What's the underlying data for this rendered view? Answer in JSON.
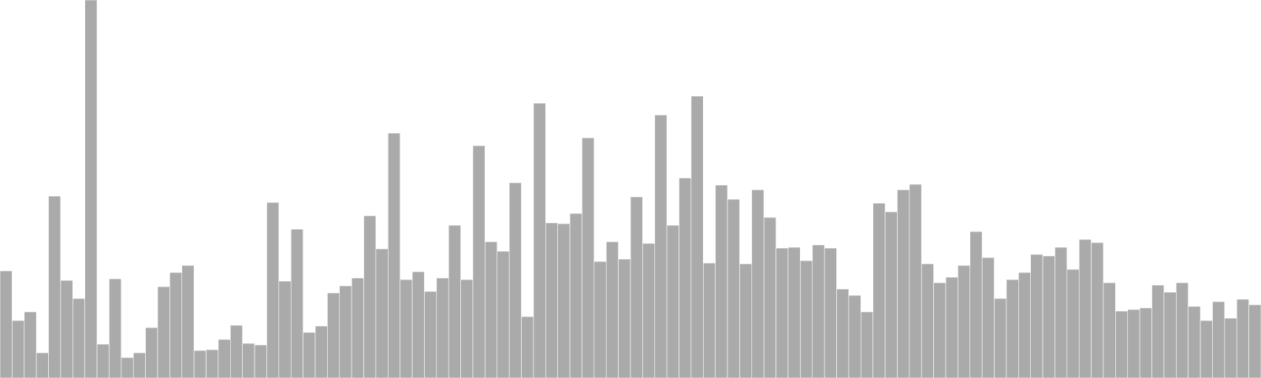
{
  "chart_data": {
    "type": "bar",
    "title": "",
    "xlabel": "",
    "ylabel": "",
    "axes_visible": false,
    "grid": false,
    "legend": "none",
    "bar_color": "#aaaaaa",
    "bar_edge_color": "#ffffff",
    "ylim": [
      0,
      480
    ],
    "values": [
      136,
      73,
      84,
      32,
      231,
      124,
      101,
      480,
      43,
      126,
      26,
      32,
      64,
      116,
      134,
      143,
      35,
      36,
      49,
      67,
      44,
      42,
      223,
      123,
      189,
      58,
      66,
      108,
      117,
      127,
      206,
      164,
      311,
      125,
      135,
      110,
      127,
      194,
      125,
      295,
      173,
      161,
      248,
      78,
      349,
      197,
      196,
      209,
      305,
      148,
      173,
      151,
      230,
      171,
      334,
      194,
      254,
      358,
      146,
      245,
      227,
      145,
      239,
      204,
      165,
      166,
      149,
      169,
      165,
      113,
      105,
      84,
      222,
      211,
      239,
      246,
      145,
      121,
      128,
      143,
      186,
      153,
      101,
      125,
      134,
      157,
      155,
      166,
      138,
      176,
      172,
      121,
      85,
      87,
      89,
      118,
      109,
      121,
      91,
      73,
      97,
      76,
      100,
      93
    ]
  }
}
